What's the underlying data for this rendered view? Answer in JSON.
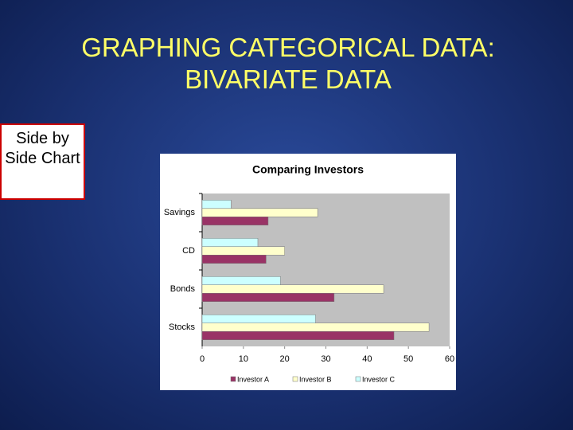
{
  "slide": {
    "title_lines": [
      "GRAPHING CATEGORICAL DATA:",
      "BIVARIATE DATA"
    ],
    "side_label": "Side by Side Chart"
  },
  "chart_data": {
    "type": "hbar",
    "title": "Comparing Investors",
    "categories": [
      "Savings",
      "CD",
      "Bonds",
      "Stocks"
    ],
    "series": [
      {
        "name": "Investor A",
        "color": "#993366",
        "values": [
          16,
          15.5,
          32,
          46.5
        ]
      },
      {
        "name": "Investor B",
        "color": "#ffffcc",
        "values": [
          28,
          20,
          44,
          55
        ]
      },
      {
        "name": "Investor C",
        "color": "#ccffff",
        "values": [
          7,
          13.5,
          19,
          27.5
        ]
      }
    ],
    "xlim": [
      0,
      60
    ],
    "xticks": [
      0,
      10,
      20,
      30,
      40,
      50,
      60
    ],
    "grid": false,
    "legend": "bottom"
  }
}
